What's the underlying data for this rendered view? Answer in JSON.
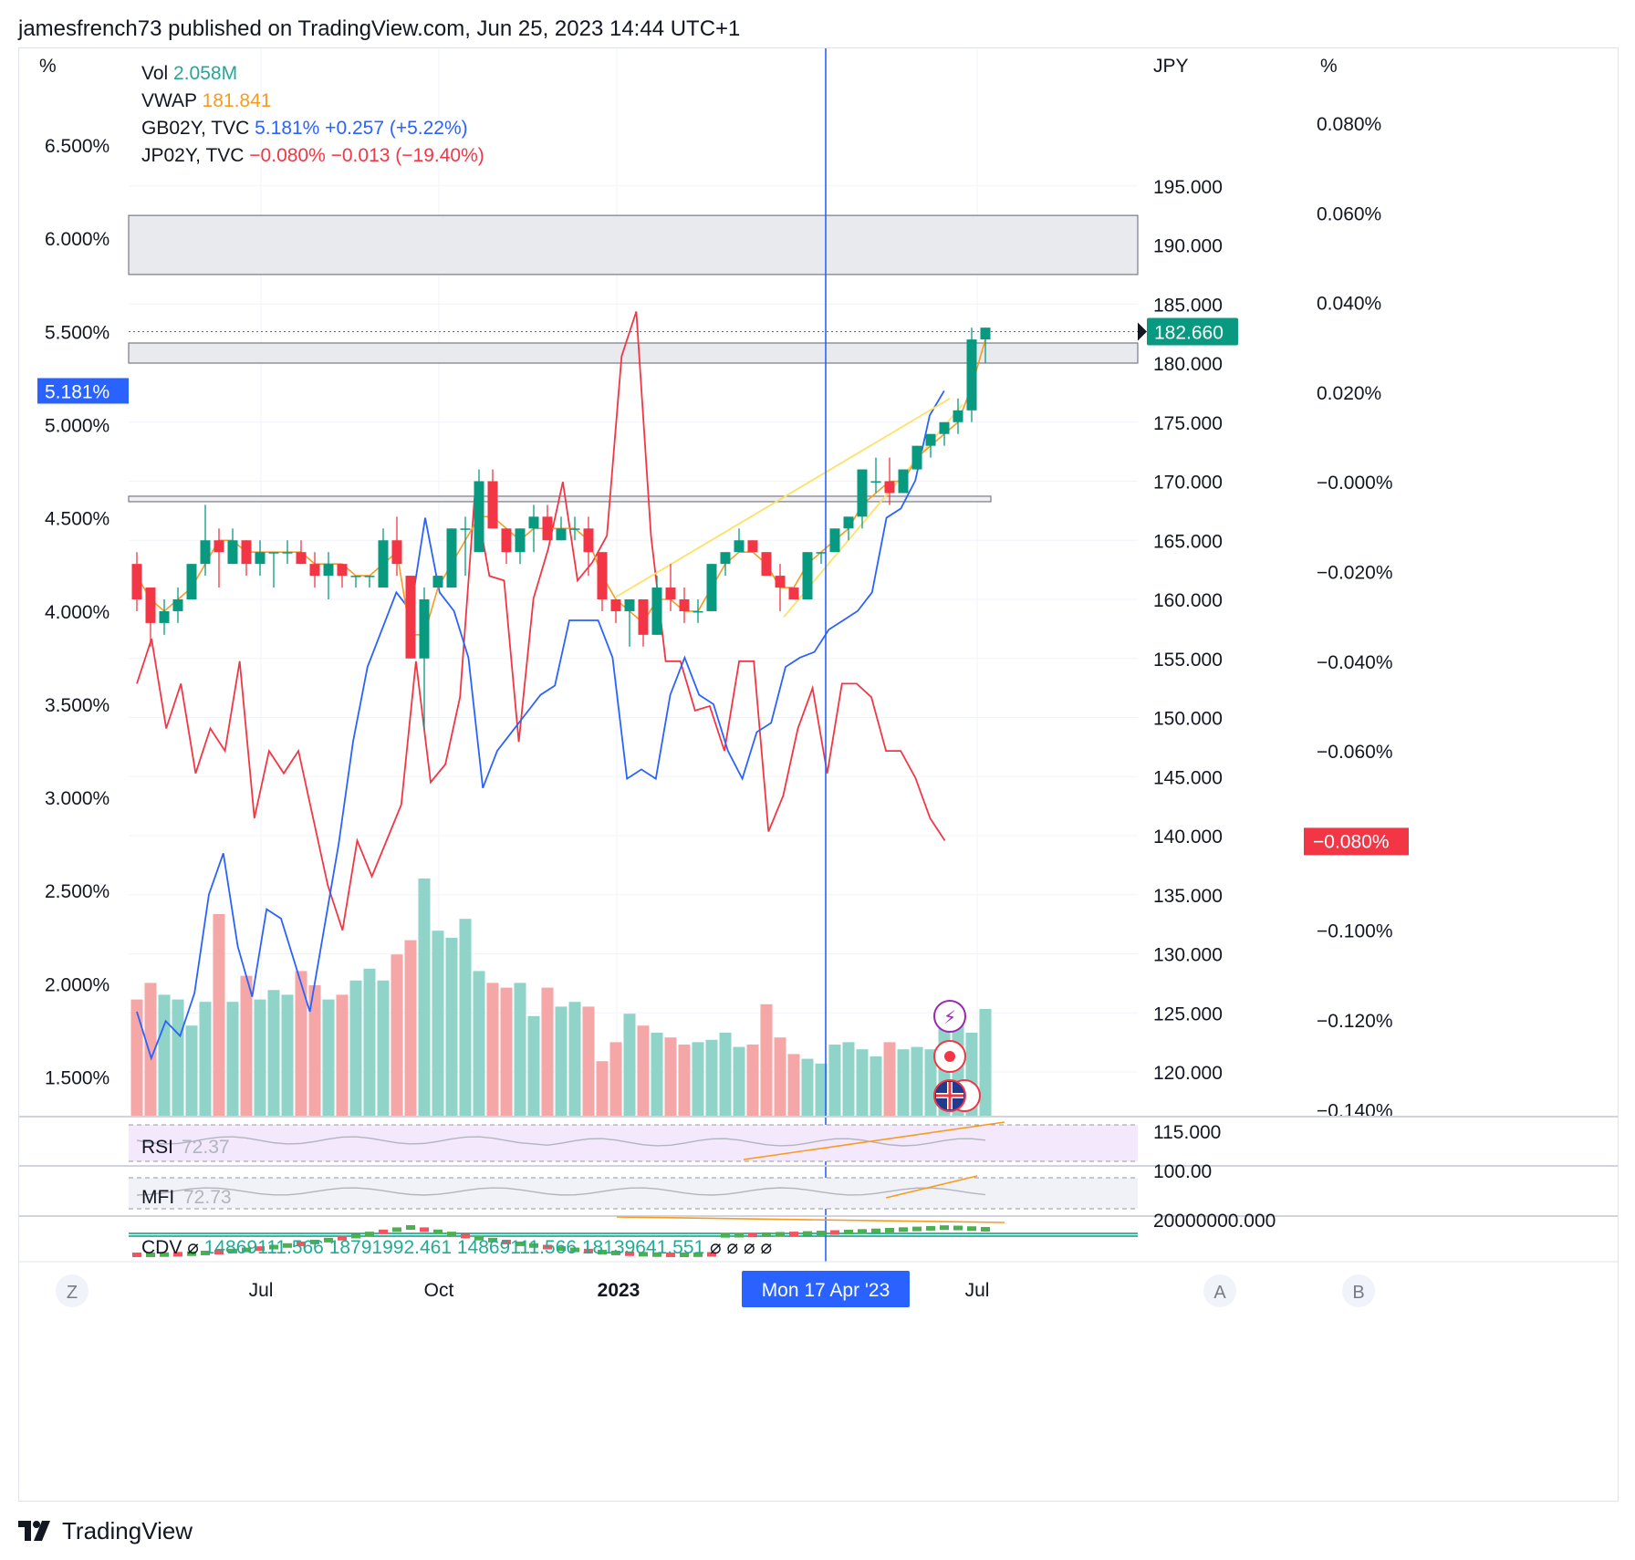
{
  "header": {
    "publisher_line": "jamesfrench73 published on TradingView.com, Jun 25, 2023 14:44 UTC+1"
  },
  "footer": {
    "brand": "TradingView"
  },
  "chart_data": {
    "type": "candlestick",
    "symbol_currency": "JPY",
    "left_axis_unit": "%",
    "right_axis_unit": "%",
    "left_axis_ticks": [
      "6.500%",
      "6.000%",
      "5.500%",
      "5.000%",
      "4.500%",
      "4.000%",
      "3.500%",
      "3.000%",
      "2.500%",
      "2.000%",
      "1.500%"
    ],
    "left_axis_values": [
      6.5,
      6.0,
      5.5,
      5.0,
      4.5,
      4.0,
      3.5,
      3.0,
      2.5,
      2.0,
      1.5
    ],
    "price_axis_ticks": [
      "195.000",
      "190.000",
      "185.000",
      "180.000",
      "175.000",
      "170.000",
      "165.000",
      "160.000",
      "155.000",
      "150.000",
      "145.000",
      "140.000",
      "135.000",
      "130.000",
      "125.000",
      "120.000",
      "115.000"
    ],
    "price_axis_values": [
      195,
      190,
      185,
      180,
      175,
      170,
      165,
      160,
      155,
      150,
      145,
      140,
      135,
      130,
      125,
      120,
      115
    ],
    "right_axis_ticks": [
      "0.080%",
      "0.060%",
      "0.040%",
      "0.020%",
      "−0.000%",
      "−0.020%",
      "−0.040%",
      "−0.060%",
      "−0.080%",
      "−0.100%",
      "−0.120%",
      "−0.140%"
    ],
    "right_axis_values": [
      0.08,
      0.06,
      0.04,
      0.02,
      0.0,
      -0.02,
      -0.04,
      -0.06,
      -0.08,
      -0.1,
      -0.12,
      -0.14
    ],
    "x_axis_labels": [
      "Jul",
      "Oct",
      "2023",
      "Jul"
    ],
    "x_axis_bold": [
      "2023"
    ],
    "crosshair_label": "Mon 17 Apr '23",
    "legend": {
      "vol": {
        "label": "Vol",
        "value": "2.058M",
        "color": "#26a69a"
      },
      "vwap": {
        "label": "VWAP",
        "value": "181.841",
        "color": "#f89b1f"
      },
      "gb": {
        "label": "GB02Y, TVC",
        "value": "5.181%",
        "change": "+0.257 (+5.22%)",
        "color": "#2962ff"
      },
      "jp": {
        "label": "JP02Y, TVC",
        "value": "−0.080%",
        "change": "−0.013 (−19.40%)",
        "color": "#f23645"
      }
    },
    "last_price_label": "182.660",
    "gb_last_label": "5.181%",
    "jp_last_label": "−0.080%",
    "price_candles": [
      [
        163,
        164,
        159,
        160
      ],
      [
        161,
        161,
        156,
        158
      ],
      [
        158,
        160,
        157,
        159
      ],
      [
        159,
        161,
        158,
        160
      ],
      [
        160,
        163,
        160,
        163
      ],
      [
        163,
        168,
        162,
        165
      ],
      [
        165,
        166,
        161,
        164
      ],
      [
        163,
        166,
        163,
        165
      ],
      [
        165,
        165,
        162,
        163
      ],
      [
        163,
        165,
        162,
        164
      ],
      [
        164,
        164,
        161,
        164
      ],
      [
        164,
        165,
        163,
        164
      ],
      [
        164,
        165,
        163,
        163
      ],
      [
        163,
        164,
        161,
        162
      ],
      [
        162,
        164,
        160,
        163
      ],
      [
        163,
        163,
        161,
        162
      ],
      [
        162,
        162,
        161,
        162
      ],
      [
        162,
        162,
        161,
        162
      ],
      [
        161,
        166,
        161,
        165
      ],
      [
        165,
        167,
        162,
        163
      ],
      [
        162,
        162,
        155,
        155
      ],
      [
        155,
        161,
        149,
        160
      ],
      [
        161,
        162,
        161,
        162
      ],
      [
        161,
        166,
        161,
        166
      ],
      [
        166,
        167,
        162,
        166
      ],
      [
        164,
        171,
        164,
        170
      ],
      [
        170,
        171,
        166,
        166
      ],
      [
        166,
        166,
        163,
        164
      ],
      [
        164,
        166,
        163,
        166
      ],
      [
        166,
        168,
        164,
        167
      ],
      [
        167,
        168,
        165,
        165
      ],
      [
        165,
        167,
        165,
        166
      ],
      [
        166,
        167,
        165,
        166
      ],
      [
        166,
        167,
        162,
        164
      ],
      [
        164,
        164,
        159,
        160
      ],
      [
        160,
        160,
        158,
        159
      ],
      [
        159,
        160,
        156,
        160
      ],
      [
        160,
        160,
        156,
        157
      ],
      [
        157,
        162,
        157,
        161
      ],
      [
        161,
        163,
        159,
        160
      ],
      [
        160,
        161,
        158,
        159
      ],
      [
        159,
        160,
        158,
        159
      ],
      [
        159,
        163,
        159,
        163
      ],
      [
        163,
        164,
        162,
        164
      ],
      [
        164,
        166,
        164,
        165
      ],
      [
        165,
        165,
        164,
        164
      ],
      [
        164,
        164,
        162,
        162
      ],
      [
        162,
        163,
        159,
        161
      ],
      [
        161,
        161,
        160,
        160
      ],
      [
        160,
        164,
        160,
        164
      ],
      [
        164,
        164,
        163,
        164
      ],
      [
        164,
        166,
        164,
        166
      ],
      [
        166,
        167,
        165,
        167
      ],
      [
        167,
        171,
        166,
        171
      ],
      [
        170,
        172,
        169,
        170
      ],
      [
        170,
        172,
        168,
        169
      ],
      [
        169,
        171,
        169,
        171
      ],
      [
        171,
        173,
        171,
        173
      ],
      [
        173,
        174,
        172,
        174
      ],
      [
        174,
        175,
        173,
        175
      ],
      [
        175,
        177,
        174,
        176
      ],
      [
        176,
        183,
        175,
        182
      ],
      [
        182,
        183,
        180,
        183
      ]
    ],
    "vwap": [
      162,
      160,
      159,
      160,
      161,
      163,
      165,
      165,
      164,
      164,
      164,
      164,
      164,
      163,
      163,
      163,
      162,
      162,
      163,
      164,
      157,
      157,
      161,
      163,
      165,
      167,
      167,
      166,
      165,
      166,
      166,
      166,
      166,
      165,
      162,
      160,
      159,
      158,
      160,
      160,
      159,
      159,
      161,
      163,
      164,
      164,
      163,
      161,
      161,
      163,
      164,
      165,
      166,
      168,
      169,
      170,
      170,
      172,
      173,
      174,
      175,
      178,
      182
    ],
    "volume_relative": [
      0.49,
      0.56,
      0.51,
      0.49,
      0.38,
      0.48,
      0.85,
      0.48,
      0.59,
      0.49,
      0.53,
      0.51,
      0.61,
      0.55,
      0.49,
      0.51,
      0.57,
      0.62,
      0.57,
      0.68,
      0.74,
      1.0,
      0.78,
      0.75,
      0.83,
      0.61,
      0.56,
      0.54,
      0.56,
      0.42,
      0.54,
      0.46,
      0.48,
      0.46,
      0.23,
      0.31,
      0.43,
      0.38,
      0.35,
      0.33,
      0.3,
      0.31,
      0.32,
      0.35,
      0.29,
      0.3,
      0.47,
      0.33,
      0.26,
      0.24,
      0.22,
      0.3,
      0.31,
      0.28,
      0.25,
      0.31,
      0.28,
      0.29,
      0.28,
      0.4,
      0.45,
      0.35,
      0.45
    ],
    "gb02y": [
      1.85,
      1.6,
      1.8,
      1.72,
      1.95,
      2.48,
      2.7,
      2.2,
      1.93,
      2.4,
      2.35,
      2.1,
      1.85,
      2.3,
      2.75,
      3.3,
      3.7,
      3.9,
      4.1,
      4.0,
      4.5,
      4.1,
      4.0,
      3.75,
      3.05,
      3.25,
      3.35,
      3.45,
      3.55,
      3.6,
      3.95,
      3.95,
      3.95,
      3.75,
      3.1,
      3.15,
      3.1,
      3.55,
      3.75,
      3.55,
      3.5,
      3.25,
      3.1,
      3.35,
      3.4,
      3.7,
      3.75,
      3.78,
      3.9,
      3.95,
      4.0,
      4.1,
      4.5,
      4.55,
      4.7,
      5.05,
      5.181
    ],
    "jp02y": [
      -0.045,
      -0.035,
      -0.055,
      -0.045,
      -0.065,
      -0.055,
      -0.06,
      -0.04,
      -0.075,
      -0.06,
      -0.065,
      -0.06,
      -0.075,
      -0.09,
      -0.1,
      -0.08,
      -0.088,
      -0.08,
      -0.072,
      -0.04,
      -0.067,
      -0.063,
      -0.048,
      -0.003,
      -0.021,
      -0.022,
      -0.058,
      -0.026,
      -0.015,
      -0.0,
      -0.022,
      -0.018,
      -0.012,
      0.028,
      0.038,
      -0.012,
      -0.04,
      -0.04,
      -0.051,
      -0.05,
      -0.06,
      -0.04,
      -0.04,
      -0.078,
      -0.07,
      -0.055,
      -0.046,
      -0.065,
      -0.045,
      -0.045,
      -0.048,
      -0.06,
      -0.06,
      -0.066,
      -0.075,
      -0.08
    ],
    "indicators": {
      "rsi": {
        "label": "RSI",
        "value": "72.37"
      },
      "mfi": {
        "label": "MFI",
        "value": "72.73",
        "axis_tick": "100.00"
      },
      "cdv": {
        "label": "CDV",
        "null_symbol": "⌀",
        "values": [
          "14869111.566",
          "18791992.461",
          "14869111.566",
          "18139641.551"
        ],
        "nulls": [
          "⌀",
          "⌀",
          "⌀",
          "⌀"
        ],
        "axis_tick": "20000000.000"
      }
    },
    "scale_buttons": [
      "Z",
      "A",
      "B"
    ],
    "zones": [
      {
        "from": 187.5,
        "to": 192.5
      },
      {
        "from": 180.0,
        "to": 181.7
      }
    ],
    "horizontal_level": 168.5,
    "grid": true
  }
}
